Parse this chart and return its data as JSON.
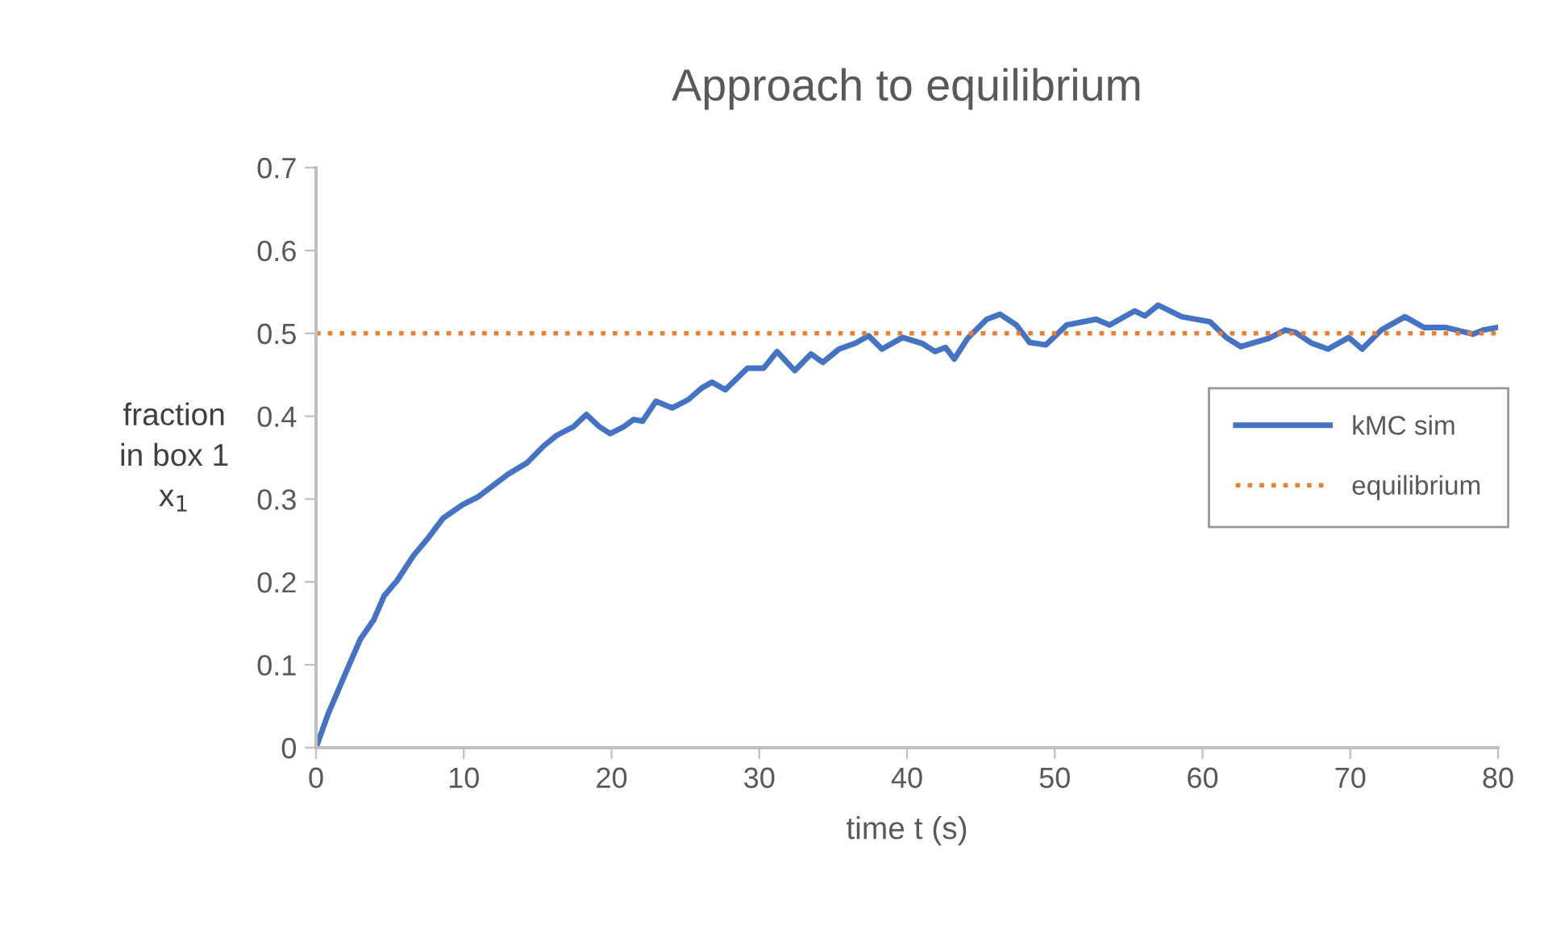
{
  "chart_data": {
    "type": "line",
    "title": "Approach to equilibrium",
    "xlabel": "time t (s)",
    "ylabel": "fraction\nin box 1\nx$_{1}$",
    "xlim": [
      0,
      80
    ],
    "xticks": [
      0,
      10,
      20,
      30,
      40,
      50,
      60,
      70,
      80
    ],
    "ylim": [
      0,
      0.7
    ],
    "yticks": [
      0,
      0.1,
      0.2,
      0.3,
      0.4,
      0.5,
      0.6,
      0.7
    ],
    "grid": false,
    "legend": "right",
    "marker": "none",
    "series": [
      {
        "name": "kMC sim",
        "color": "#4472c4",
        "line_style": "solid",
        "x": [
          0,
          0.8,
          1.9,
          3.0,
          3.9,
          4.6,
          5.5,
          6.6,
          7.5,
          8.6,
          9.9,
          11.0,
          12.1,
          13.0,
          14.3,
          15.4,
          16.3,
          17.4,
          18.3,
          19.2,
          19.9,
          20.8,
          21.5,
          22.1,
          23.0,
          24.1,
          25.2,
          26.1,
          26.8,
          27.7,
          29.2,
          30.3,
          31.2,
          32.4,
          33.5,
          34.3,
          35.4,
          36.5,
          37.4,
          38.3,
          39.7,
          41.0,
          41.9,
          42.6,
          43.2,
          44.1,
          45.4,
          46.3,
          47.4,
          48.3,
          49.4,
          50.8,
          52.8,
          53.7,
          55.4,
          56.1,
          57.0,
          58.6,
          60.5,
          61.6,
          62.6,
          64.5,
          65.6,
          66.3,
          67.4,
          68.5,
          69.9,
          70.8,
          72.1,
          73.7,
          75.0,
          76.5,
          78.3,
          79.0,
          79.9
        ],
        "values": [
          0,
          0.04,
          0.086,
          0.131,
          0.154,
          0.183,
          0.202,
          0.232,
          0.251,
          0.277,
          0.293,
          0.303,
          0.318,
          0.33,
          0.344,
          0.364,
          0.377,
          0.387,
          0.402,
          0.387,
          0.379,
          0.387,
          0.396,
          0.394,
          0.418,
          0.41,
          0.42,
          0.434,
          0.441,
          0.432,
          0.458,
          0.458,
          0.478,
          0.455,
          0.475,
          0.465,
          0.481,
          0.488,
          0.497,
          0.481,
          0.495,
          0.488,
          0.478,
          0.483,
          0.469,
          0.494,
          0.517,
          0.523,
          0.51,
          0.489,
          0.486,
          0.51,
          0.517,
          0.51,
          0.527,
          0.521,
          0.534,
          0.52,
          0.514,
          0.495,
          0.484,
          0.494,
          0.504,
          0.501,
          0.488,
          0.481,
          0.495,
          0.481,
          0.504,
          0.52,
          0.507,
          0.507,
          0.499,
          0.504,
          0.507
        ]
      },
      {
        "name": "equilibrium",
        "color": "#ed7d31",
        "line_style": "dotted",
        "x": [
          0,
          80
        ],
        "values": [
          0.5,
          0.5
        ]
      }
    ]
  }
}
